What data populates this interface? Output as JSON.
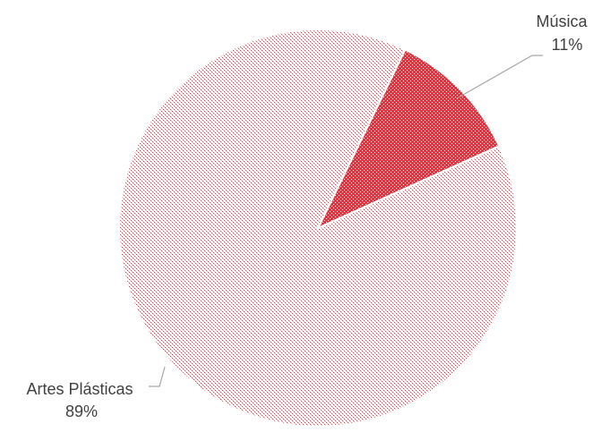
{
  "chart_data": {
    "type": "pie",
    "title": "",
    "slices": [
      {
        "label": "Música",
        "value": 11,
        "value_label": "11%",
        "color": "#e8333f"
      },
      {
        "label": "Artes Plásticas",
        "value": 89,
        "value_label": "89%",
        "color": "#f2a0a6"
      }
    ],
    "legend": "none",
    "data_labels": "outside-with-leader-lines"
  }
}
